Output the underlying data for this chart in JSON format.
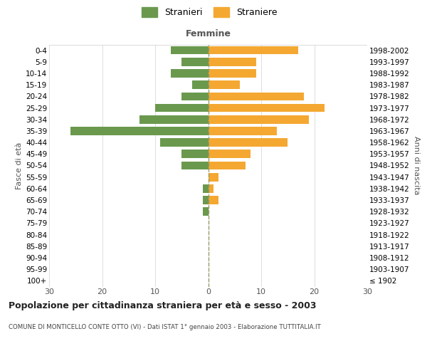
{
  "age_groups": [
    "100+",
    "95-99",
    "90-94",
    "85-89",
    "80-84",
    "75-79",
    "70-74",
    "65-69",
    "60-64",
    "55-59",
    "50-54",
    "45-49",
    "40-44",
    "35-39",
    "30-34",
    "25-29",
    "20-24",
    "15-19",
    "10-14",
    "5-9",
    "0-4"
  ],
  "birth_years": [
    "≤ 1902",
    "1903-1907",
    "1908-1912",
    "1913-1917",
    "1918-1922",
    "1923-1927",
    "1928-1932",
    "1933-1937",
    "1938-1942",
    "1943-1947",
    "1948-1952",
    "1953-1957",
    "1958-1962",
    "1963-1967",
    "1968-1972",
    "1973-1977",
    "1978-1982",
    "1983-1987",
    "1988-1992",
    "1993-1997",
    "1998-2002"
  ],
  "males": [
    0,
    0,
    0,
    0,
    0,
    0,
    1,
    1,
    1,
    0,
    5,
    5,
    9,
    26,
    13,
    10,
    5,
    3,
    7,
    5,
    7
  ],
  "females": [
    0,
    0,
    0,
    0,
    0,
    0,
    0,
    2,
    1,
    2,
    7,
    8,
    15,
    13,
    19,
    22,
    18,
    6,
    9,
    9,
    17
  ],
  "male_color": "#6a994e",
  "female_color": "#f4a832",
  "title": "Popolazione per cittadinanza straniera per età e sesso - 2003",
  "subtitle": "COMUNE DI MONTICELLO CONTE OTTO (VI) - Dati ISTAT 1° gennaio 2003 - Elaborazione TUTTITALIA.IT",
  "ylabel_left": "Fasce di età",
  "ylabel_right": "Anni di nascita",
  "xlabel_femmine": "Femmine",
  "legend_male": "Stranieri",
  "legend_female": "Straniere",
  "xlim": 30,
  "background_color": "#ffffff",
  "grid_color": "#d0d0d0",
  "dashed_color": "#999966"
}
